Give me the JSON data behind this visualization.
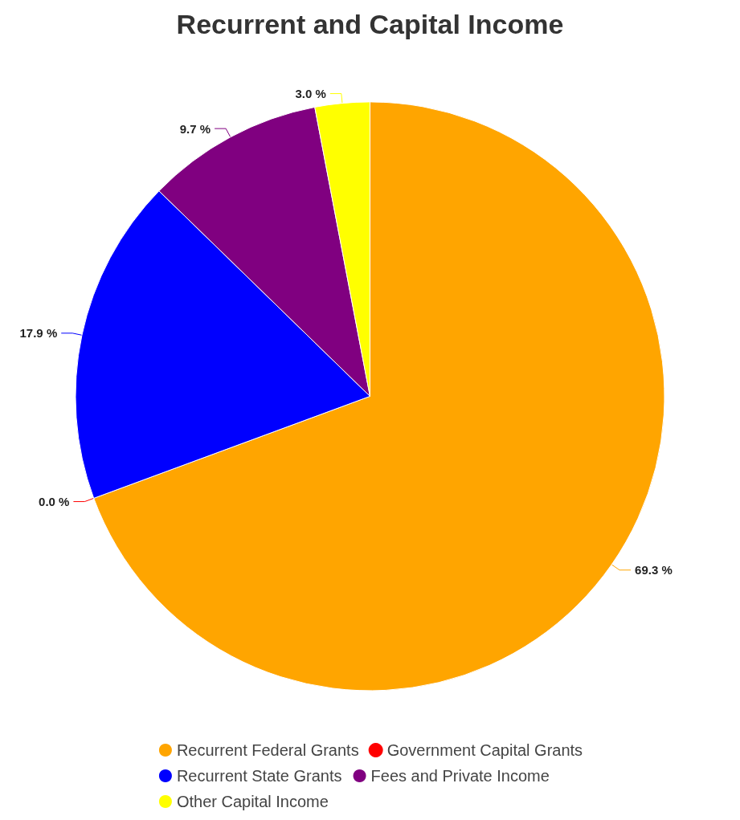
{
  "chart_data": {
    "type": "pie",
    "title": "Recurrent and Capital Income",
    "categories": [
      "Recurrent Federal Grants",
      "Government Capital Grants",
      "Recurrent State Grants",
      "Fees and Private Income",
      "Other Capital Income"
    ],
    "values": [
      69.3,
      0.0,
      17.9,
      9.7,
      3.0
    ],
    "colors": [
      "#ffa500",
      "#ff0000",
      "#0000ff",
      "#800080",
      "#ffff00"
    ],
    "value_labels": [
      "69.3 %",
      "0.0 %",
      "17.9 %",
      "9.7 %",
      "3.0 %"
    ],
    "legend": "bottom"
  }
}
